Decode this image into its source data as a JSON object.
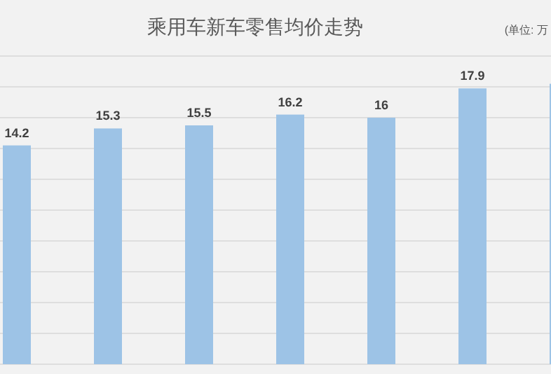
{
  "chart_data": {
    "type": "bar",
    "title": "乘用车新车零售均价走势",
    "annotations": [
      "(单位: 万"
    ],
    "categories": [
      null,
      null,
      null,
      null,
      null,
      null,
      null
    ],
    "values": [
      14.2,
      15.3,
      15.5,
      16.2,
      16,
      17.9,
      18.2
    ],
    "value_labels": [
      "14.2",
      "15.3",
      "15.5",
      "16.2",
      "16",
      "17.9",
      null
    ],
    "color": "#9dc3e6",
    "ylim": [
      0,
      20
    ],
    "yticks": [
      {
        "value": 0,
        "label": null
      },
      {
        "value": 2,
        "label": null
      },
      {
        "value": 4,
        "label": null
      },
      {
        "value": 6,
        "label": null
      },
      {
        "value": 8,
        "label": null
      },
      {
        "value": 10,
        "label": null
      },
      {
        "value": 12,
        "label": null
      },
      {
        "value": 14,
        "label": null
      },
      {
        "value": 16,
        "label": null
      },
      {
        "value": 18,
        "label": null
      },
      {
        "value": 20,
        "label": null
      }
    ],
    "grid": "y"
  }
}
